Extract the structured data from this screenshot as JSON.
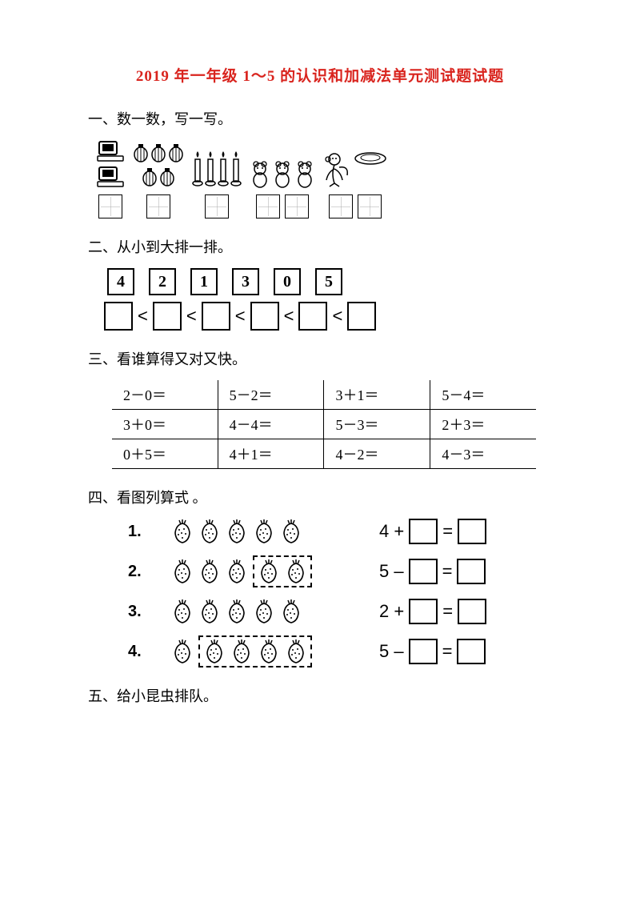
{
  "title": "2019 年一年级 1～5 的认识和加减法单元测试题试题",
  "title_color": "#d9241e",
  "sections": {
    "s1": {
      "head": "一、数一数，写一写。"
    },
    "s2": {
      "head": "二、从小到大排一排。",
      "numbers": [
        "4",
        "2",
        "1",
        "3",
        "0",
        "5"
      ],
      "lt": "<"
    },
    "s3": {
      "head": "三、看谁算得又对又快。",
      "rows": [
        [
          "2－0＝",
          "5－2＝",
          "3＋1＝",
          "5－4＝"
        ],
        [
          "3＋0＝",
          "4－4＝",
          "5－3＝",
          "2＋3＝"
        ],
        [
          "0＋5＝",
          "4＋1＝",
          "4－2＝",
          "4－3＝"
        ]
      ]
    },
    "s4": {
      "head": "四、看图列算式 。",
      "items": [
        {
          "n": "1.",
          "groups": [
            4,
            1
          ],
          "dashed": [
            false,
            false
          ],
          "lhs": "4 +",
          "sep": "="
        },
        {
          "n": "2.",
          "groups": [
            3,
            2
          ],
          "dashed": [
            false,
            true
          ],
          "lhs": "5 –",
          "sep": "="
        },
        {
          "n": "3.",
          "groups": [
            2,
            3
          ],
          "dashed": [
            false,
            false
          ],
          "lhs": "2 +",
          "sep": "="
        },
        {
          "n": "4.",
          "groups": [
            1,
            4
          ],
          "dashed": [
            false,
            true
          ],
          "lhs": "5 –",
          "sep": "="
        }
      ]
    },
    "s5": {
      "head": "五、给小昆虫排队。"
    }
  },
  "colors": {
    "text": "#000000",
    "bg": "#ffffff"
  }
}
